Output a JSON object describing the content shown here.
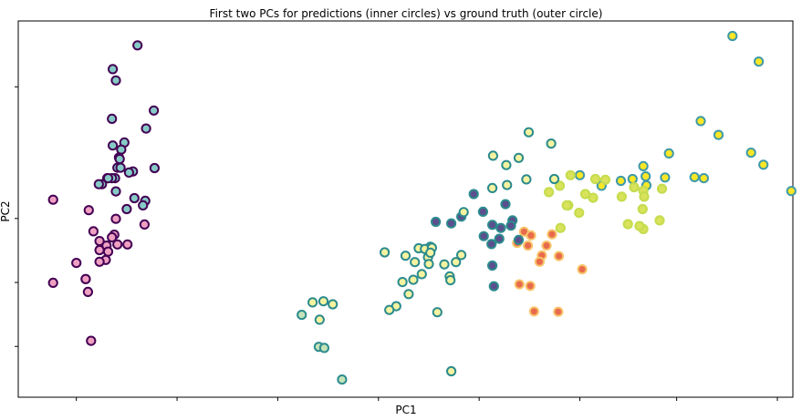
{
  "chart_data": {
    "type": "scatter",
    "title": "First two PCs for predictions (inner circles) vs ground truth (outer circle)",
    "xlabel": "PC1",
    "ylabel": "PC2",
    "xlim": [
      0,
      1
    ],
    "ylim": [
      0,
      1
    ],
    "grid": false,
    "tick_labels_shown": false,
    "palette": {
      "c0": "#440154",
      "c1": "#5b4f8d",
      "c2": "#2c8b8d",
      "c3": "#86cac6",
      "c4": "#3f9aa8",
      "c5": "#efa0c2",
      "c6": "#f2798c",
      "c7": "#c5dc4e",
      "c8": "#fde725",
      "c9": "#e86b4c",
      "c10": "#4fb46a",
      "c11": "#f6f3a0",
      "c12": "#f9f08e",
      "c13": "#c5e3b8",
      "c14": "#e8b878",
      "c15": "#5c5f9b",
      "c16": "#d8e25a",
      "c17": "#f7c46a",
      "c18": "#8b7ea8",
      "c19": "#f28a4d"
    },
    "series": [
      {
        "fill": "c3",
        "edge": "c0",
        "x": [
          0.154,
          0.122,
          0.126,
          0.175,
          0.121,
          0.165,
          0.137,
          0.122,
          0.133,
          0.13,
          0.131,
          0.128,
          0.132,
          0.115,
          0.125,
          0.121,
          0.116,
          0.108,
          0.104,
          0.126,
          0.15,
          0.164,
          0.176,
          0.148,
          0.143,
          0.14,
          0.161
        ],
        "y": [
          0.935,
          0.872,
          0.842,
          0.762,
          0.74,
          0.714,
          0.677,
          0.669,
          0.658,
          0.637,
          0.633,
          0.61,
          0.61,
          0.582,
          0.582,
          0.582,
          0.582,
          0.566,
          0.566,
          0.547,
          0.529,
          0.522,
          0.609,
          0.6,
          0.597,
          0.5,
          0.51
        ]
      },
      {
        "fill": "c5",
        "edge": "c0",
        "x": [
          0.045,
          0.091,
          0.126,
          0.163,
          0.097,
          0.124,
          0.121,
          0.105,
          0.128,
          0.114,
          0.141,
          0.116,
          0.105,
          0.113,
          0.075,
          0.105,
          0.087,
          0.087,
          0.045,
          0.09,
          0.094
        ],
        "y": [
          0.525,
          0.497,
          0.474,
          0.459,
          0.441,
          0.432,
          0.425,
          0.415,
          0.406,
          0.403,
          0.406,
          0.387,
          0.391,
          0.365,
          0.357,
          0.36,
          0.314,
          0.314,
          0.304,
          0.28,
          0.15
        ]
      },
      {
        "fill": "c8",
        "edge": "c4",
        "x": [
          0.922,
          0.956,
          0.881,
          0.904,
          0.84,
          0.946,
          0.962,
          0.873,
          0.885,
          0.835,
          0.807,
          0.81,
          0.793,
          0.811,
          0.753,
          0.778,
          0.725,
          0.998
        ],
        "y": [
          0.96,
          0.892,
          0.734,
          0.697,
          0.648,
          0.65,
          0.618,
          0.585,
          0.582,
          0.584,
          0.614,
          0.587,
          0.58,
          0.563,
          0.562,
          0.575,
          0.59,
          0.548
        ]
      },
      {
        "fill": "c16",
        "edge": "c7",
        "x": [
          0.745,
          0.713,
          0.685,
          0.699,
          0.71,
          0.708,
          0.732,
          0.742,
          0.724,
          0.7,
          0.795,
          0.807,
          0.831,
          0.808,
          0.758,
          0.779,
          0.806,
          0.807,
          0.787,
          0.828,
          0.802
        ],
        "y": [
          0.58,
          0.59,
          0.545,
          0.562,
          0.51,
          0.51,
          0.54,
          0.53,
          0.49,
          0.45,
          0.558,
          0.549,
          0.554,
          0.533,
          0.578,
          0.533,
          0.5,
          0.447,
          0.46,
          0.47,
          0.455
        ]
      },
      {
        "fill": "c9",
        "edge": "c17",
        "x": [
          0.653,
          0.662,
          0.689,
          0.682,
          0.658,
          0.644,
          0.676,
          0.673,
          0.698,
          0.728,
          0.647,
          0.661,
          0.666,
          0.697
        ],
        "y": [
          0.44,
          0.43,
          0.433,
          0.403,
          0.403,
          0.41,
          0.377,
          0.36,
          0.375,
          0.34,
          0.3,
          0.296,
          0.228,
          0.227
        ]
      },
      {
        "fill": "c1",
        "edge": "c2",
        "x": [
          0.588,
          0.629,
          0.638,
          0.6,
          0.612,
          0.623,
          0.636,
          0.572,
          0.539,
          0.559,
          0.601,
          0.621,
          0.611,
          0.646,
          0.612,
          0.614
        ],
        "y": [
          0.54,
          0.513,
          0.47,
          0.493,
          0.458,
          0.45,
          0.456,
          0.48,
          0.466,
          0.462,
          0.428,
          0.421,
          0.407,
          0.418,
          0.35,
          0.295
        ]
      },
      {
        "fill": "c11",
        "edge": "c2",
        "x": [
          0.659,
          0.688,
          0.646,
          0.613,
          0.63,
          0.656,
          0.692,
          0.631,
          0.612,
          0.575,
          0.532,
          0.529,
          0.473,
          0.517,
          0.5,
          0.525,
          0.512,
          0.534,
          0.55,
          0.532,
          0.53,
          0.521,
          0.565,
          0.572,
          0.557,
          0.496,
          0.51,
          0.488,
          0.479,
          0.558,
          0.504,
          0.541,
          0.406,
          0.38,
          0.394,
          0.389,
          0.559
        ],
        "y": [
          0.704,
          0.674,
          0.636,
          0.642,
          0.617,
          0.579,
          0.58,
          0.564,
          0.556,
          0.492,
          0.4,
          0.372,
          0.385,
          0.396,
          0.376,
          0.394,
          0.359,
          0.397,
          0.353,
          0.384,
          0.354,
          0.327,
          0.359,
          0.378,
          0.321,
          0.306,
          0.312,
          0.242,
          0.232,
          0.311,
          0.274,
          0.226,
          0.247,
          0.252,
          0.255,
          0.206,
          0.069
        ]
      },
      {
        "fill": "c13",
        "edge": "c2",
        "x": [
          0.366,
          0.388,
          0.395,
          0.418
        ],
        "y": [
          0.219,
          0.134,
          0.131,
          0.047
        ]
      }
    ]
  }
}
